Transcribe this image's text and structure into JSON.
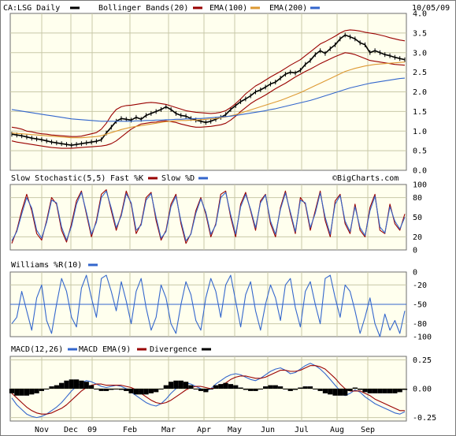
{
  "header": {
    "symbol_label": "CA:LSG Daily",
    "bollinger_label": "Bollinger Bands(20)",
    "ema100_label": "EMA(100)",
    "ema200_label": "EMA(200)",
    "date": "10/05/09"
  },
  "credit": "©BigCharts.com",
  "colors": {
    "background": "#ffffff",
    "plot_bg": "#ffffee",
    "grid": "#c8c8a8",
    "price": "#000000",
    "bollinger": "#990000",
    "ema100": "#dd9933",
    "ema200": "#3366cc",
    "fast_k": "#990000",
    "slow_d": "#3366cc",
    "williams": "#3366cc",
    "macd": "#3366cc",
    "signal": "#990000",
    "divergence": "#000000"
  },
  "chart_data": [
    {
      "type": "line",
      "title": "CA:LSG Daily",
      "x_ticks": [
        "Nov",
        "Dec",
        "09",
        "Feb",
        "Mar",
        "Apr",
        "May",
        "Jun",
        "Jul",
        "Aug",
        "Sep"
      ],
      "y_ticks": [
        "0.0",
        "0.5",
        "1.0",
        "1.5",
        "2.0",
        "2.5",
        "3.0",
        "3.5",
        "4.0"
      ],
      "ylim": [
        0,
        4.0
      ],
      "grid": true,
      "series": [
        {
          "name": "CA:LSG Daily",
          "color": "#000000",
          "values": [
            0.92,
            0.9,
            0.88,
            0.85,
            0.82,
            0.8,
            0.78,
            0.75,
            0.72,
            0.7,
            0.68,
            0.66,
            0.64,
            0.66,
            0.68,
            0.7,
            0.72,
            0.74,
            0.78,
            0.95,
            1.1,
            1.25,
            1.32,
            1.3,
            1.28,
            1.35,
            1.3,
            1.4,
            1.45,
            1.5,
            1.55,
            1.62,
            1.55,
            1.45,
            1.4,
            1.38,
            1.32,
            1.28,
            1.25,
            1.22,
            1.25,
            1.3,
            1.35,
            1.42,
            1.55,
            1.65,
            1.75,
            1.82,
            1.9,
            2.0,
            2.05,
            2.12,
            2.2,
            2.25,
            2.35,
            2.45,
            2.5,
            2.48,
            2.55,
            2.7,
            2.8,
            2.95,
            3.05,
            2.98,
            3.1,
            3.2,
            3.35,
            3.45,
            3.4,
            3.35,
            3.25,
            3.2,
            3.0,
            3.05,
            3.0,
            2.95,
            2.92,
            2.88,
            2.85,
            2.82
          ]
        },
        {
          "name": "Bollinger Bands(20) upper",
          "color": "#990000",
          "values": [
            1.1,
            1.08,
            1.05,
            1.0,
            0.98,
            0.95,
            0.93,
            0.92,
            0.9,
            0.89,
            0.88,
            0.87,
            0.86,
            0.86,
            0.87,
            0.9,
            0.93,
            0.96,
            1.05,
            1.2,
            1.4,
            1.55,
            1.62,
            1.65,
            1.66,
            1.68,
            1.7,
            1.72,
            1.73,
            1.72,
            1.7,
            1.68,
            1.64,
            1.6,
            1.56,
            1.52,
            1.5,
            1.48,
            1.47,
            1.46,
            1.45,
            1.46,
            1.48,
            1.52,
            1.6,
            1.7,
            1.82,
            1.95,
            2.05,
            2.15,
            2.22,
            2.3,
            2.38,
            2.45,
            2.52,
            2.6,
            2.68,
            2.75,
            2.82,
            2.92,
            3.02,
            3.12,
            3.22,
            3.28,
            3.35,
            3.42,
            3.5,
            3.56,
            3.58,
            3.57,
            3.55,
            3.52,
            3.5,
            3.48,
            3.45,
            3.42,
            3.38,
            3.35,
            3.32,
            3.3
          ]
        },
        {
          "name": "Bollinger Bands(20) lower",
          "color": "#990000",
          "values": [
            0.75,
            0.72,
            0.7,
            0.68,
            0.66,
            0.64,
            0.62,
            0.6,
            0.58,
            0.57,
            0.56,
            0.56,
            0.56,
            0.57,
            0.58,
            0.59,
            0.6,
            0.61,
            0.62,
            0.64,
            0.68,
            0.75,
            0.85,
            0.95,
            1.05,
            1.12,
            1.18,
            1.2,
            1.22,
            1.23,
            1.25,
            1.26,
            1.24,
            1.22,
            1.18,
            1.15,
            1.12,
            1.1,
            1.1,
            1.11,
            1.12,
            1.14,
            1.16,
            1.2,
            1.28,
            1.38,
            1.5,
            1.6,
            1.7,
            1.78,
            1.85,
            1.92,
            2.0,
            2.08,
            2.15,
            2.22,
            2.3,
            2.38,
            2.45,
            2.52,
            2.58,
            2.65,
            2.72,
            2.78,
            2.84,
            2.9,
            2.95,
            3.0,
            2.98,
            2.95,
            2.9,
            2.85,
            2.8,
            2.78,
            2.76,
            2.74,
            2.72,
            2.7,
            2.69,
            2.68
          ]
        },
        {
          "name": "EMA(100)",
          "color": "#dd9933",
          "values": [
            0.95,
            0.94,
            0.93,
            0.92,
            0.91,
            0.9,
            0.89,
            0.88,
            0.87,
            0.86,
            0.85,
            0.84,
            0.83,
            0.83,
            0.83,
            0.84,
            0.85,
            0.86,
            0.88,
            0.92,
            0.96,
            1.0,
            1.04,
            1.07,
            1.1,
            1.12,
            1.14,
            1.16,
            1.18,
            1.2,
            1.22,
            1.24,
            1.25,
            1.26,
            1.27,
            1.27,
            1.28,
            1.28,
            1.29,
            1.3,
            1.31,
            1.32,
            1.34,
            1.36,
            1.39,
            1.42,
            1.46,
            1.5,
            1.54,
            1.58,
            1.62,
            1.66,
            1.7,
            1.74,
            1.78,
            1.83,
            1.88,
            1.93,
            1.98,
            2.04,
            2.1,
            2.16,
            2.22,
            2.28,
            2.34,
            2.4,
            2.46,
            2.52,
            2.56,
            2.6,
            2.63,
            2.66,
            2.68,
            2.7,
            2.71,
            2.72,
            2.73,
            2.74,
            2.75,
            2.76
          ]
        },
        {
          "name": "EMA(200)",
          "color": "#3366cc",
          "values": [
            1.55,
            1.53,
            1.51,
            1.49,
            1.47,
            1.45,
            1.43,
            1.41,
            1.39,
            1.37,
            1.35,
            1.33,
            1.31,
            1.3,
            1.29,
            1.28,
            1.27,
            1.26,
            1.25,
            1.25,
            1.25,
            1.25,
            1.25,
            1.25,
            1.25,
            1.26,
            1.26,
            1.27,
            1.27,
            1.28,
            1.28,
            1.29,
            1.29,
            1.3,
            1.3,
            1.31,
            1.31,
            1.32,
            1.32,
            1.33,
            1.34,
            1.35,
            1.36,
            1.37,
            1.38,
            1.4,
            1.42,
            1.44,
            1.46,
            1.48,
            1.5,
            1.52,
            1.55,
            1.57,
            1.6,
            1.63,
            1.66,
            1.69,
            1.72,
            1.75,
            1.78,
            1.82,
            1.86,
            1.9,
            1.94,
            1.98,
            2.02,
            2.06,
            2.1,
            2.13,
            2.16,
            2.19,
            2.22,
            2.24,
            2.26,
            2.28,
            2.3,
            2.32,
            2.34,
            2.35
          ]
        }
      ]
    },
    {
      "type": "line",
      "title": "Slow Stochastic(5,5)",
      "y_ticks": [
        "0",
        "20",
        "50",
        "80",
        "100"
      ],
      "ylim": [
        0,
        100
      ],
      "grid": true,
      "series": [
        {
          "name": "Fast %K",
          "color": "#990000",
          "values": [
            10,
            30,
            60,
            85,
            60,
            25,
            15,
            45,
            80,
            70,
            30,
            12,
            40,
            75,
            90,
            55,
            20,
            45,
            85,
            92,
            60,
            30,
            55,
            90,
            70,
            25,
            40,
            80,
            88,
            45,
            15,
            30,
            70,
            85,
            40,
            10,
            25,
            60,
            80,
            55,
            20,
            40,
            85,
            90,
            50,
            20,
            70,
            88,
            60,
            30,
            75,
            85,
            40,
            20,
            65,
            90,
            55,
            25,
            80,
            70,
            30,
            60,
            90,
            45,
            20,
            75,
            85,
            40,
            25,
            70,
            30,
            20,
            65,
            85,
            30,
            25,
            70,
            40,
            30,
            55
          ]
        },
        {
          "name": "Slow %D",
          "color": "#3366cc",
          "values": [
            14,
            28,
            55,
            80,
            64,
            30,
            18,
            42,
            76,
            72,
            35,
            15,
            36,
            70,
            88,
            58,
            24,
            42,
            80,
            90,
            64,
            34,
            52,
            86,
            72,
            30,
            38,
            76,
            86,
            50,
            18,
            28,
            66,
            82,
            44,
            14,
            24,
            56,
            78,
            58,
            24,
            38,
            80,
            88,
            54,
            24,
            66,
            85,
            62,
            34,
            72,
            84,
            44,
            24,
            62,
            87,
            58,
            28,
            76,
            72,
            34,
            56,
            87,
            50,
            24,
            70,
            83,
            44,
            28,
            66,
            34,
            22,
            60,
            82,
            35,
            26,
            66,
            44,
            32,
            50
          ]
        }
      ]
    },
    {
      "type": "line",
      "title": "Williams %R(10)",
      "y_ticks": [
        "0",
        "-20",
        "-50",
        "-80",
        "-100"
      ],
      "ylim": [
        -100,
        0
      ],
      "grid": true,
      "series": [
        {
          "name": "Williams %R(10)",
          "color": "#3366cc",
          "values": [
            -80,
            -70,
            -30,
            -60,
            -90,
            -40,
            -20,
            -75,
            -95,
            -50,
            -10,
            -30,
            -70,
            -85,
            -25,
            -5,
            -40,
            -70,
            -10,
            -5,
            -30,
            -60,
            -15,
            -45,
            -80,
            -30,
            -10,
            -55,
            -90,
            -70,
            -20,
            -40,
            -80,
            -95,
            -50,
            -15,
            -35,
            -75,
            -90,
            -40,
            -10,
            -30,
            -70,
            -20,
            -5,
            -45,
            -85,
            -35,
            -15,
            -60,
            -90,
            -50,
            -20,
            -40,
            -75,
            -20,
            -10,
            -55,
            -85,
            -30,
            -15,
            -50,
            -80,
            -10,
            -5,
            -40,
            -70,
            -20,
            -30,
            -60,
            -95,
            -70,
            -40,
            -80,
            -100,
            -65,
            -90,
            -75,
            -95,
            -60
          ]
        },
        {
          "name": "Williams %R(10) -50",
          "color": "#3366cc",
          "values": [
            -50,
            -50
          ]
        }
      ]
    },
    {
      "type": "line",
      "title": "MACD(12,26)",
      "y_ticks": [
        "0.25",
        "0.00",
        "-0.25"
      ],
      "ylim": [
        -0.28,
        0.28
      ],
      "grid": true,
      "series": [
        {
          "name": "MACD",
          "color": "#3366cc",
          "values": [
            -0.08,
            -0.14,
            -0.18,
            -0.22,
            -0.24,
            -0.25,
            -0.24,
            -0.22,
            -0.19,
            -0.16,
            -0.12,
            -0.07,
            -0.02,
            0.02,
            0.05,
            0.07,
            0.06,
            0.04,
            0.02,
            0.01,
            0.02,
            0.03,
            0.02,
            0.0,
            -0.03,
            -0.06,
            -0.09,
            -0.12,
            -0.14,
            -0.15,
            -0.13,
            -0.09,
            -0.04,
            0.0,
            0.03,
            0.05,
            0.04,
            0.02,
            0.0,
            -0.02,
            0.0,
            0.04,
            0.07,
            0.1,
            0.12,
            0.13,
            0.12,
            0.1,
            0.08,
            0.07,
            0.09,
            0.12,
            0.15,
            0.17,
            0.18,
            0.16,
            0.13,
            0.14,
            0.17,
            0.2,
            0.22,
            0.2,
            0.17,
            0.13,
            0.08,
            0.03,
            -0.02,
            -0.06,
            -0.04,
            -0.01,
            -0.03,
            -0.07,
            -0.1,
            -0.13,
            -0.15,
            -0.17,
            -0.19,
            -0.21,
            -0.22,
            -0.2
          ]
        },
        {
          "name": "MACD EMA(9)",
          "color": "#990000",
          "values": [
            -0.04,
            -0.08,
            -0.12,
            -0.16,
            -0.19,
            -0.21,
            -0.22,
            -0.22,
            -0.21,
            -0.19,
            -0.17,
            -0.14,
            -0.1,
            -0.06,
            -0.02,
            0.01,
            0.03,
            0.04,
            0.04,
            0.03,
            0.03,
            0.03,
            0.03,
            0.02,
            0.01,
            -0.01,
            -0.04,
            -0.07,
            -0.1,
            -0.12,
            -0.13,
            -0.12,
            -0.1,
            -0.07,
            -0.04,
            -0.01,
            0.01,
            0.02,
            0.02,
            0.01,
            0.0,
            0.01,
            0.03,
            0.05,
            0.08,
            0.1,
            0.11,
            0.11,
            0.1,
            0.09,
            0.09,
            0.1,
            0.12,
            0.14,
            0.16,
            0.16,
            0.15,
            0.15,
            0.16,
            0.18,
            0.2,
            0.2,
            0.19,
            0.17,
            0.13,
            0.09,
            0.04,
            0.0,
            -0.02,
            -0.02,
            -0.02,
            -0.04,
            -0.06,
            -0.09,
            -0.11,
            -0.13,
            -0.15,
            -0.17,
            -0.19,
            -0.19
          ]
        },
        {
          "name": "Divergence",
          "color": "#000000",
          "type": "bar",
          "values": [
            -0.04,
            -0.06,
            -0.06,
            -0.06,
            -0.05,
            -0.04,
            -0.02,
            0.0,
            0.02,
            0.03,
            0.05,
            0.07,
            0.08,
            0.08,
            0.07,
            0.06,
            0.03,
            0.0,
            -0.02,
            -0.02,
            -0.01,
            0.0,
            -0.01,
            -0.02,
            -0.04,
            -0.05,
            -0.05,
            -0.05,
            -0.04,
            -0.03,
            0.0,
            0.03,
            0.06,
            0.07,
            0.07,
            0.06,
            0.03,
            0.0,
            -0.02,
            -0.03,
            0.0,
            0.03,
            0.04,
            0.05,
            0.04,
            0.03,
            0.01,
            -0.01,
            -0.02,
            -0.02,
            0.0,
            0.02,
            0.03,
            0.03,
            0.02,
            0.0,
            -0.02,
            -0.01,
            0.01,
            0.02,
            0.02,
            0.0,
            -0.02,
            -0.04,
            -0.05,
            -0.06,
            -0.06,
            -0.06,
            -0.02,
            0.01,
            -0.01,
            -0.03,
            -0.04,
            -0.04,
            -0.04,
            -0.04,
            -0.04,
            -0.04,
            -0.03,
            -0.01
          ]
        }
      ]
    }
  ],
  "panels": {
    "stochastic": {
      "label": "Slow Stochastic(5,5)",
      "fast_label": "Fast %K",
      "slow_label": "Slow %D"
    },
    "williams": {
      "label": "Williams %R(10)"
    },
    "macd": {
      "label": "MACD(12,26)",
      "ema_label": "MACD EMA(9)",
      "div_label": "Divergence"
    }
  }
}
